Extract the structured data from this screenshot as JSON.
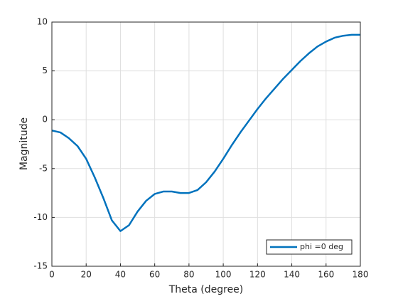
{
  "chart_data": {
    "type": "line",
    "xlabel": "Theta (degree)",
    "ylabel": "Magnitude",
    "x": [
      0,
      5,
      10,
      15,
      20,
      25,
      30,
      35,
      40,
      45,
      50,
      55,
      60,
      65,
      70,
      75,
      80,
      85,
      90,
      95,
      100,
      105,
      110,
      115,
      120,
      125,
      130,
      135,
      140,
      145,
      150,
      155,
      160,
      165,
      170,
      175,
      180
    ],
    "series": [
      {
        "name": "phi =0 deg",
        "color": "#0072bd",
        "values": [
          -1.1,
          -1.3,
          -1.9,
          -2.7,
          -4.0,
          -5.9,
          -8.0,
          -10.3,
          -11.4,
          -10.8,
          -9.4,
          -8.3,
          -7.6,
          -7.35,
          -7.35,
          -7.5,
          -7.5,
          -7.2,
          -6.4,
          -5.3,
          -4.0,
          -2.6,
          -1.3,
          -0.1,
          1.1,
          2.2,
          3.2,
          4.2,
          5.1,
          6.0,
          6.8,
          7.5,
          8.0,
          8.4,
          8.6,
          8.7,
          8.7
        ]
      }
    ],
    "xlim": [
      0,
      180
    ],
    "xticks": [
      0,
      20,
      40,
      60,
      80,
      100,
      120,
      140,
      160,
      180
    ],
    "ylim": [
      -15,
      10
    ],
    "yticks": [
      -15,
      -10,
      -5,
      0,
      5,
      10
    ],
    "grid": true,
    "legend": "lower right"
  }
}
